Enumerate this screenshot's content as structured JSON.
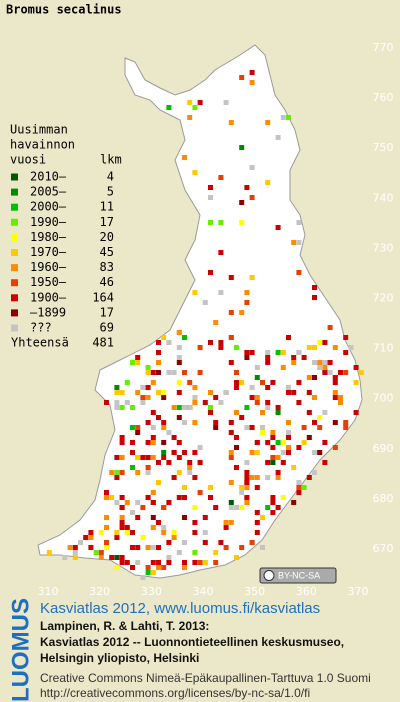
{
  "title": "Bromus secalinus",
  "legend": {
    "heading": [
      "Uusimman",
      "havainnon",
      "vuosi"
    ],
    "count_heading": "lkm",
    "rows": [
      {
        "label": "2010–",
        "count": 4,
        "color": "#005a00"
      },
      {
        "label": "2005–",
        "count": 5,
        "color": "#008c00"
      },
      {
        "label": "2000–",
        "count": 11,
        "color": "#00c000"
      },
      {
        "label": "1990–",
        "count": 17,
        "color": "#66ee00"
      },
      {
        "label": "1980–",
        "count": 20,
        "color": "#ffff00"
      },
      {
        "label": "1970–",
        "count": 45,
        "color": "#ffc800"
      },
      {
        "label": "1960–",
        "count": 83,
        "color": "#ff8c00"
      },
      {
        "label": "1950–",
        "count": 46,
        "color": "#e84000"
      },
      {
        "label": "1900–",
        "count": 164,
        "color": "#cc0000"
      },
      {
        "label": "–1899",
        "count": 17,
        "color": "#8c0000"
      },
      {
        "label": "???",
        "count": 69,
        "color": "#c4c4c4"
      }
    ],
    "total": {
      "label": "Yhteensä",
      "count": 481
    }
  },
  "x_axis": [
    310,
    320,
    330,
    340,
    350,
    360,
    370
  ],
  "y_axis": [
    670,
    680,
    690,
    700,
    710,
    720,
    730,
    740,
    750,
    760,
    770
  ],
  "license_badge": "BY-NC-SA",
  "logo": "LUOMUS",
  "footer": {
    "link": "Kasviatlas 2012, www.luomus.fi/kasviatlas",
    "citation": [
      "Lampinen, R. & Lahti, T. 2013:",
      "Kasviatlas 2012 -- Luonnontieteellinen keskusmuseo,",
      "Helsingin yliopisto, Helsinki"
    ],
    "license": [
      "Creative Commons Nimeä-Epäkaupallinen-Tarttuva 1.0 Suomi",
      "http://creativecommons.org/licenses/by-nc-sa/1.0/fi"
    ]
  }
}
